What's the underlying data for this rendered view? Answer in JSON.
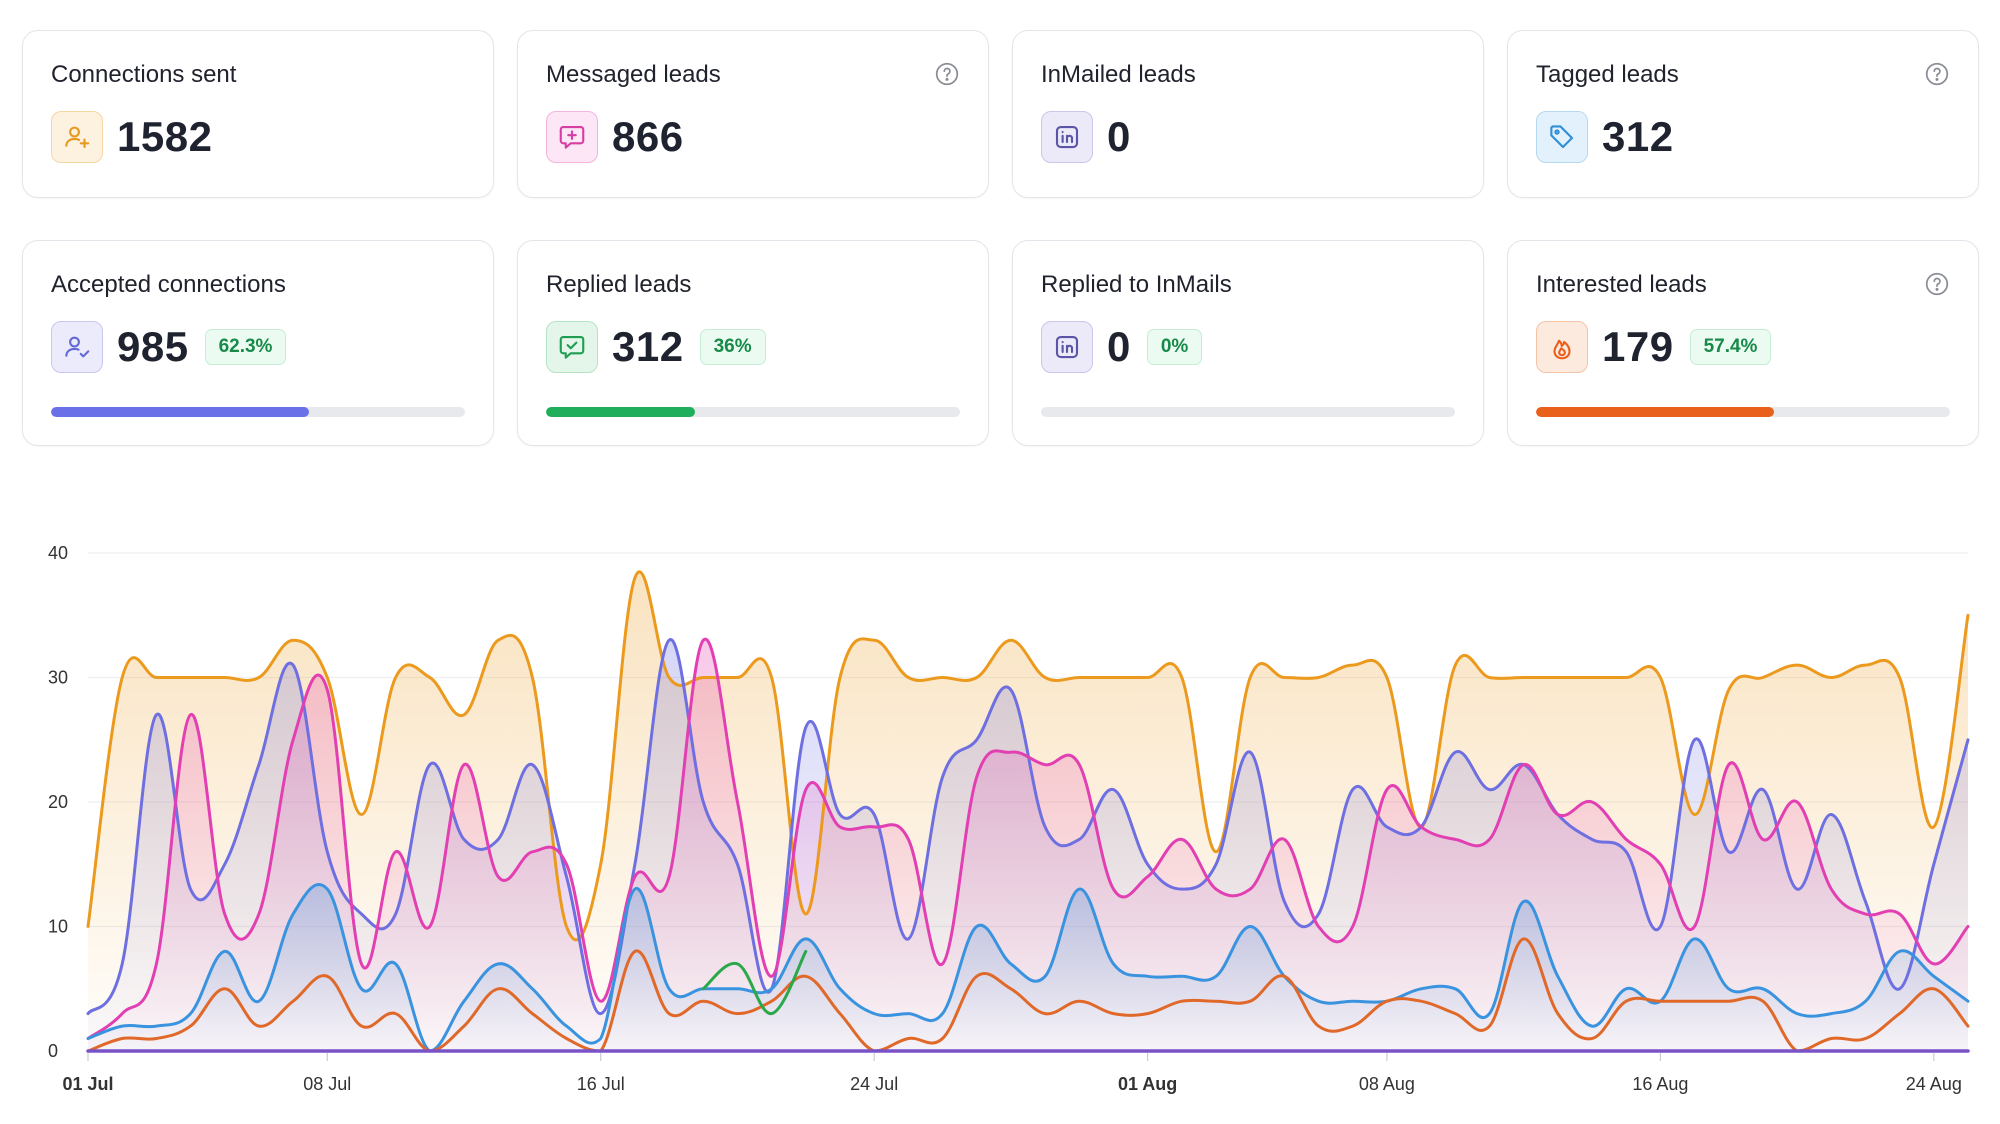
{
  "cards": [
    {
      "id": "connections-sent",
      "title": "Connections sent",
      "value": "1582",
      "icon": "user-plus-icon",
      "icon_bg": "#fdf1df",
      "icon_border": "#f6d6a4",
      "icon_color": "#e69a1e",
      "help": false
    },
    {
      "id": "messaged-leads",
      "title": "Messaged leads",
      "value": "866",
      "icon": "message-plus-icon",
      "icon_bg": "#fde6f5",
      "icon_border": "#f3b5dd",
      "icon_color": "#d63ea3",
      "help": true
    },
    {
      "id": "inmailed-leads",
      "title": "InMailed leads",
      "value": "0",
      "icon": "linkedin-icon",
      "icon_bg": "#eceaf8",
      "icon_border": "#cbc6ea",
      "icon_color": "#5b55a8",
      "help": false
    },
    {
      "id": "tagged-leads",
      "title": "Tagged leads",
      "value": "312",
      "icon": "tag-icon",
      "icon_bg": "#e3f1fc",
      "icon_border": "#b5d9f3",
      "icon_color": "#2f8fd6",
      "help": true
    },
    {
      "id": "accepted-connections",
      "title": "Accepted connections",
      "value": "985",
      "badge": "62.3%",
      "progress": 0.623,
      "progress_color": "#6a71e8",
      "icon": "user-check-icon",
      "icon_bg": "#ecebfb",
      "icon_border": "#c9c7ef",
      "icon_color": "#6469d6",
      "help": false
    },
    {
      "id": "replied-leads",
      "title": "Replied leads",
      "value": "312",
      "badge": "36%",
      "progress": 0.36,
      "progress_color": "#1fae5b",
      "icon": "message-check-icon",
      "icon_bg": "#e4f6ea",
      "icon_border": "#b4e3c4",
      "icon_color": "#1f9e52",
      "help": false
    },
    {
      "id": "replied-to-inmails",
      "title": "Replied to InMails",
      "value": "0",
      "badge": "0%",
      "progress": 0.0,
      "progress_color": "#8a84d6",
      "icon": "linkedin-icon",
      "icon_bg": "#eceaf8",
      "icon_border": "#cbc6ea",
      "icon_color": "#5b55a8",
      "help": false
    },
    {
      "id": "interested-leads",
      "title": "Interested leads",
      "value": "179",
      "badge": "57.4%",
      "progress": 0.574,
      "progress_color": "#e8601c",
      "icon": "flame-icon",
      "icon_bg": "#fdeadf",
      "icon_border": "#f5c3a6",
      "icon_color": "#e8601c",
      "help": true
    }
  ],
  "chart_data": {
    "type": "area",
    "x_start": "01 Jul",
    "x_end": "24 Aug",
    "ylim": [
      0,
      40
    ],
    "y_ticks": [
      0,
      10,
      20,
      30,
      40
    ],
    "x_ticks": [
      {
        "label": "01 Jul",
        "day": 0,
        "bold": true
      },
      {
        "label": "08 Jul",
        "day": 7,
        "bold": false
      },
      {
        "label": "16 Jul",
        "day": 15,
        "bold": false
      },
      {
        "label": "24 Jul",
        "day": 23,
        "bold": false
      },
      {
        "label": "01 Aug",
        "day": 31,
        "bold": true
      },
      {
        "label": "08 Aug",
        "day": 38,
        "bold": false
      },
      {
        "label": "16 Aug",
        "day": 46,
        "bold": false
      },
      {
        "label": "24 Aug",
        "day": 54,
        "bold": false
      }
    ],
    "grid": true,
    "legend": "none",
    "series": [
      {
        "key": "orange",
        "color": "#ec9a1e",
        "fill": true,
        "values": [
          10,
          30,
          30,
          30,
          30,
          30,
          33,
          30,
          19,
          30,
          30,
          27,
          33,
          30,
          10,
          15,
          38,
          30,
          30,
          30,
          30,
          11,
          30,
          33,
          30,
          30,
          30,
          33,
          30,
          30,
          30,
          30,
          30,
          16,
          30,
          30,
          30,
          31,
          30,
          18,
          31,
          30,
          30,
          30,
          30,
          30,
          30,
          19,
          29,
          30,
          31,
          30,
          31,
          30,
          18,
          35
        ]
      },
      {
        "key": "purple",
        "color": "#6e6fe0",
        "fill": true,
        "values": [
          3,
          7,
          27,
          13,
          15,
          23,
          31,
          16,
          11,
          11,
          23,
          17,
          17,
          23,
          14,
          3,
          15,
          33,
          20,
          15,
          5,
          26,
          19,
          19,
          9,
          22,
          25,
          29,
          18,
          17,
          21,
          15,
          13,
          15,
          24,
          12,
          11,
          21,
          18,
          18,
          24,
          21,
          23,
          19,
          17,
          16,
          10,
          25,
          16,
          21,
          13,
          19,
          12,
          5,
          15,
          25
        ]
      },
      {
        "key": "pink",
        "color": "#e23fb3",
        "fill": true,
        "values": [
          1,
          3,
          7,
          27,
          11,
          11,
          25,
          29,
          7,
          16,
          10,
          23,
          14,
          16,
          15,
          4,
          14,
          14,
          33,
          20,
          6,
          21,
          18,
          18,
          17,
          7,
          22,
          24,
          23,
          23,
          13,
          14,
          17,
          13,
          13,
          17,
          10,
          10,
          21,
          18,
          17,
          17,
          23,
          19,
          20,
          17,
          15,
          10,
          23,
          17,
          20,
          13,
          11,
          11,
          7,
          10
        ]
      },
      {
        "key": "blue",
        "color": "#3a93df",
        "fill": true,
        "values": [
          1,
          2,
          2,
          3,
          8,
          4,
          11,
          13,
          5,
          7,
          0,
          4,
          7,
          5,
          2,
          1,
          13,
          5,
          5,
          5,
          5,
          9,
          5,
          3,
          3,
          3,
          10,
          7,
          6,
          13,
          7,
          6,
          6,
          6,
          10,
          6,
          4,
          4,
          4,
          5,
          5,
          3,
          12,
          6,
          2,
          5,
          4,
          9,
          5,
          5,
          3,
          3,
          4,
          8,
          6,
          4
        ]
      },
      {
        "key": "red",
        "color": "#e0692a",
        "fill": false,
        "values": [
          0,
          1,
          1,
          2,
          5,
          2,
          4,
          6,
          2,
          3,
          0,
          2,
          5,
          3,
          1,
          0,
          8,
          3,
          4,
          3,
          4,
          6,
          3,
          0,
          1,
          1,
          6,
          5,
          3,
          4,
          3,
          3,
          4,
          4,
          4,
          6,
          2,
          2,
          4,
          4,
          3,
          2,
          9,
          3,
          1,
          4,
          4,
          4,
          4,
          4,
          0,
          1,
          1,
          3,
          5,
          2
        ]
      },
      {
        "key": "green",
        "color": "#2aa84a",
        "fill": false,
        "values": [
          null,
          null,
          null,
          null,
          null,
          null,
          null,
          null,
          null,
          null,
          null,
          null,
          null,
          null,
          null,
          null,
          null,
          null,
          5,
          7,
          3,
          8,
          null,
          null,
          null,
          null,
          null,
          null,
          null,
          null,
          null,
          null,
          null,
          null,
          null,
          null,
          null,
          null,
          null,
          null,
          null,
          null,
          null,
          null,
          null,
          null,
          null,
          null,
          null,
          null,
          null,
          null,
          null,
          null,
          null,
          null
        ]
      },
      {
        "key": "baseline",
        "color": "#7a52c7",
        "fill": false,
        "values": [
          0,
          0,
          0,
          0,
          0,
          0,
          0,
          0,
          0,
          0,
          0,
          0,
          0,
          0,
          0,
          0,
          0,
          0,
          0,
          0,
          0,
          0,
          0,
          0,
          0,
          0,
          0,
          0,
          0,
          0,
          0,
          0,
          0,
          0,
          0,
          0,
          0,
          0,
          0,
          0,
          0,
          0,
          0,
          0,
          0,
          0,
          0,
          0,
          0,
          0,
          0,
          0,
          0,
          0,
          0,
          0
        ]
      }
    ]
  }
}
